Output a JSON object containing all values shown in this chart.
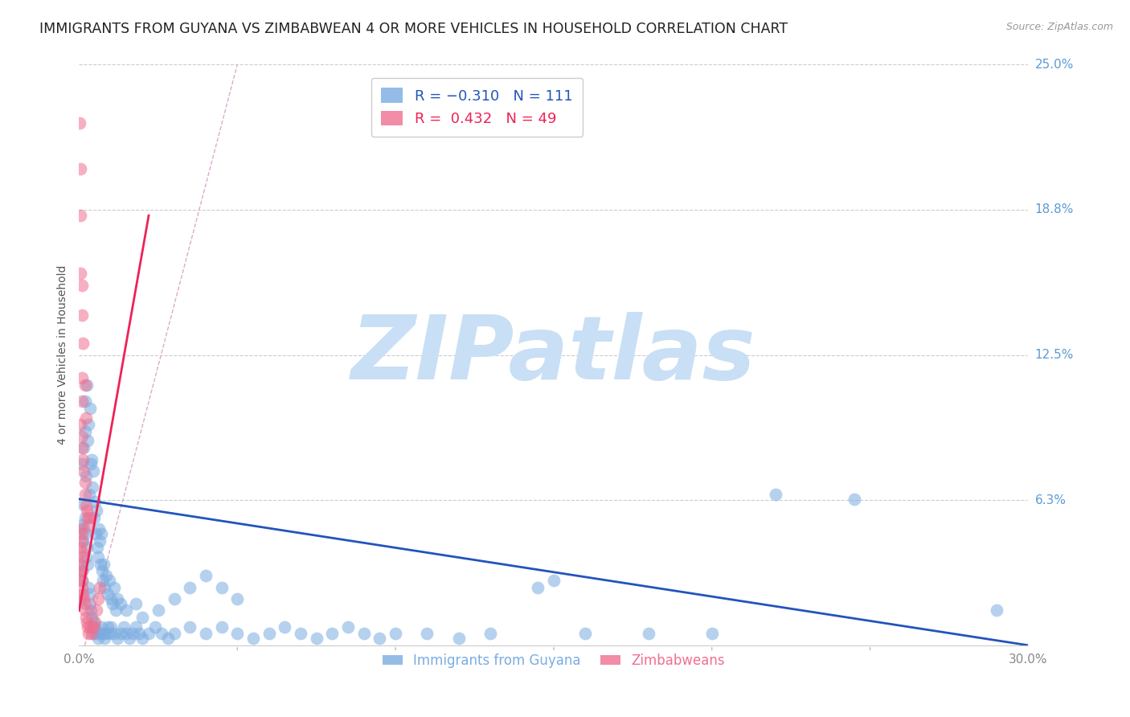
{
  "title": "IMMIGRANTS FROM GUYANA VS ZIMBABWEAN 4 OR MORE VEHICLES IN HOUSEHOLD CORRELATION CHART",
  "source": "Source: ZipAtlas.com",
  "ylabel": "4 or more Vehicles in Household",
  "x_tick_values": [
    0.0,
    5.0,
    10.0,
    15.0,
    20.0,
    25.0,
    30.0
  ],
  "x_tick_labels_show": [
    "0.0%",
    "",
    "",
    "",
    "",
    "",
    "30.0%"
  ],
  "y_tick_values": [
    0.0,
    6.25,
    12.5,
    18.75,
    25.0
  ],
  "y_tick_labels": [
    "",
    "6.3%",
    "12.5%",
    "18.8%",
    "25.0%"
  ],
  "xlim": [
    0.0,
    30.0
  ],
  "ylim": [
    0.0,
    25.0
  ],
  "guyana_color": "#7aace0",
  "zimbabwe_color": "#f07090",
  "guyana_alpha": 0.55,
  "zimbabwe_alpha": 0.55,
  "trend_blue_color": "#2255bb",
  "trend_pink_color": "#ee2255",
  "diagonal_color": "#ddaacc",
  "watermark_zip_color": "#c8dff5",
  "watermark_atlas_color": "#c8dff5",
  "background_color": "#ffffff",
  "title_fontsize": 12.5,
  "axis_label_fontsize": 10,
  "tick_fontsize": 11,
  "legend_fontsize": 13,
  "guyana_points": [
    [
      0.05,
      3.5
    ],
    [
      0.08,
      5.2
    ],
    [
      0.1,
      7.8
    ],
    [
      0.12,
      6.1
    ],
    [
      0.15,
      8.5
    ],
    [
      0.18,
      9.2
    ],
    [
      0.2,
      10.5
    ],
    [
      0.22,
      7.3
    ],
    [
      0.25,
      11.2
    ],
    [
      0.28,
      8.8
    ],
    [
      0.3,
      9.5
    ],
    [
      0.32,
      6.5
    ],
    [
      0.35,
      10.2
    ],
    [
      0.38,
      7.8
    ],
    [
      0.4,
      8.0
    ],
    [
      0.42,
      6.8
    ],
    [
      0.45,
      7.5
    ],
    [
      0.48,
      5.5
    ],
    [
      0.5,
      6.2
    ],
    [
      0.52,
      4.8
    ],
    [
      0.55,
      5.8
    ],
    [
      0.58,
      4.2
    ],
    [
      0.6,
      3.8
    ],
    [
      0.62,
      5.0
    ],
    [
      0.65,
      4.5
    ],
    [
      0.68,
      3.5
    ],
    [
      0.7,
      4.8
    ],
    [
      0.72,
      3.2
    ],
    [
      0.75,
      2.8
    ],
    [
      0.78,
      3.5
    ],
    [
      0.8,
      2.5
    ],
    [
      0.85,
      3.0
    ],
    [
      0.9,
      2.2
    ],
    [
      0.95,
      2.8
    ],
    [
      1.0,
      2.0
    ],
    [
      1.05,
      1.8
    ],
    [
      1.1,
      2.5
    ],
    [
      1.15,
      1.5
    ],
    [
      1.2,
      2.0
    ],
    [
      1.3,
      1.8
    ],
    [
      0.05,
      2.0
    ],
    [
      0.08,
      2.8
    ],
    [
      0.1,
      3.2
    ],
    [
      0.12,
      4.5
    ],
    [
      0.15,
      5.0
    ],
    [
      0.18,
      4.8
    ],
    [
      0.2,
      5.5
    ],
    [
      0.22,
      3.8
    ],
    [
      0.25,
      4.2
    ],
    [
      0.28,
      3.5
    ],
    [
      0.3,
      2.5
    ],
    [
      0.32,
      1.8
    ],
    [
      0.35,
      2.2
    ],
    [
      0.38,
      1.5
    ],
    [
      0.4,
      1.2
    ],
    [
      0.42,
      0.8
    ],
    [
      0.45,
      1.0
    ],
    [
      0.48,
      0.5
    ],
    [
      0.5,
      0.8
    ],
    [
      0.55,
      0.5
    ],
    [
      0.6,
      0.3
    ],
    [
      0.65,
      0.5
    ],
    [
      0.7,
      0.8
    ],
    [
      0.75,
      0.5
    ],
    [
      0.8,
      0.3
    ],
    [
      0.85,
      0.5
    ],
    [
      0.9,
      0.8
    ],
    [
      0.95,
      0.5
    ],
    [
      1.0,
      0.8
    ],
    [
      1.1,
      0.5
    ],
    [
      1.2,
      0.3
    ],
    [
      1.3,
      0.5
    ],
    [
      1.4,
      0.8
    ],
    [
      1.5,
      0.5
    ],
    [
      1.6,
      0.3
    ],
    [
      1.7,
      0.5
    ],
    [
      1.8,
      0.8
    ],
    [
      1.9,
      0.5
    ],
    [
      2.0,
      0.3
    ],
    [
      2.2,
      0.5
    ],
    [
      2.4,
      0.8
    ],
    [
      2.6,
      0.5
    ],
    [
      2.8,
      0.3
    ],
    [
      3.0,
      0.5
    ],
    [
      3.5,
      0.8
    ],
    [
      4.0,
      0.5
    ],
    [
      4.5,
      0.8
    ],
    [
      5.0,
      0.5
    ],
    [
      5.5,
      0.3
    ],
    [
      6.0,
      0.5
    ],
    [
      6.5,
      0.8
    ],
    [
      7.0,
      0.5
    ],
    [
      7.5,
      0.3
    ],
    [
      8.0,
      0.5
    ],
    [
      8.5,
      0.8
    ],
    [
      9.0,
      0.5
    ],
    [
      9.5,
      0.3
    ],
    [
      10.0,
      0.5
    ],
    [
      11.0,
      0.5
    ],
    [
      12.0,
      0.3
    ],
    [
      13.0,
      0.5
    ],
    [
      14.5,
      2.5
    ],
    [
      15.0,
      2.8
    ],
    [
      16.0,
      0.5
    ],
    [
      18.0,
      0.5
    ],
    [
      20.0,
      0.5
    ],
    [
      22.0,
      6.5
    ],
    [
      24.5,
      6.3
    ],
    [
      29.0,
      1.5
    ],
    [
      1.5,
      1.5
    ],
    [
      1.8,
      1.8
    ],
    [
      2.0,
      1.2
    ],
    [
      2.5,
      1.5
    ],
    [
      3.0,
      2.0
    ],
    [
      3.5,
      2.5
    ],
    [
      4.0,
      3.0
    ],
    [
      4.5,
      2.5
    ],
    [
      5.0,
      2.0
    ]
  ],
  "zimbabwe_points": [
    [
      0.02,
      22.5
    ],
    [
      0.03,
      20.5
    ],
    [
      0.05,
      18.5
    ],
    [
      0.05,
      16.0
    ],
    [
      0.08,
      14.2
    ],
    [
      0.1,
      15.5
    ],
    [
      0.12,
      13.0
    ],
    [
      0.08,
      11.5
    ],
    [
      0.1,
      10.5
    ],
    [
      0.05,
      9.5
    ],
    [
      0.08,
      9.0
    ],
    [
      0.1,
      8.5
    ],
    [
      0.12,
      8.0
    ],
    [
      0.15,
      7.5
    ],
    [
      0.18,
      7.0
    ],
    [
      0.2,
      6.5
    ],
    [
      0.22,
      6.0
    ],
    [
      0.25,
      5.8
    ],
    [
      0.28,
      5.5
    ],
    [
      0.3,
      5.2
    ],
    [
      0.05,
      5.0
    ],
    [
      0.08,
      4.8
    ],
    [
      0.1,
      4.5
    ],
    [
      0.05,
      4.2
    ],
    [
      0.08,
      4.0
    ],
    [
      0.1,
      3.8
    ],
    [
      0.05,
      3.5
    ],
    [
      0.08,
      3.2
    ],
    [
      0.05,
      3.0
    ],
    [
      0.08,
      2.8
    ],
    [
      0.1,
      2.5
    ],
    [
      0.12,
      2.2
    ],
    [
      0.15,
      2.0
    ],
    [
      0.18,
      1.8
    ],
    [
      0.2,
      1.5
    ],
    [
      0.22,
      1.2
    ],
    [
      0.25,
      1.0
    ],
    [
      0.28,
      0.8
    ],
    [
      0.3,
      0.5
    ],
    [
      0.35,
      0.8
    ],
    [
      0.4,
      0.5
    ],
    [
      0.45,
      0.8
    ],
    [
      0.5,
      1.0
    ],
    [
      0.55,
      1.5
    ],
    [
      0.6,
      2.0
    ],
    [
      0.65,
      2.5
    ],
    [
      0.18,
      11.2
    ],
    [
      0.22,
      9.8
    ],
    [
      0.35,
      5.5
    ]
  ],
  "guyana_trend": {
    "x_start": 0.0,
    "x_end": 30.0,
    "y_start": 6.3,
    "y_end": 0.0
  },
  "zimbabwe_trend": {
    "x_start": 0.0,
    "x_end": 2.2,
    "y_start": 1.5,
    "y_end": 18.5
  },
  "diagonal_line": {
    "x_start": 0.18,
    "x_end": 5.0,
    "y_start": 0.0,
    "y_end": 25.0
  }
}
